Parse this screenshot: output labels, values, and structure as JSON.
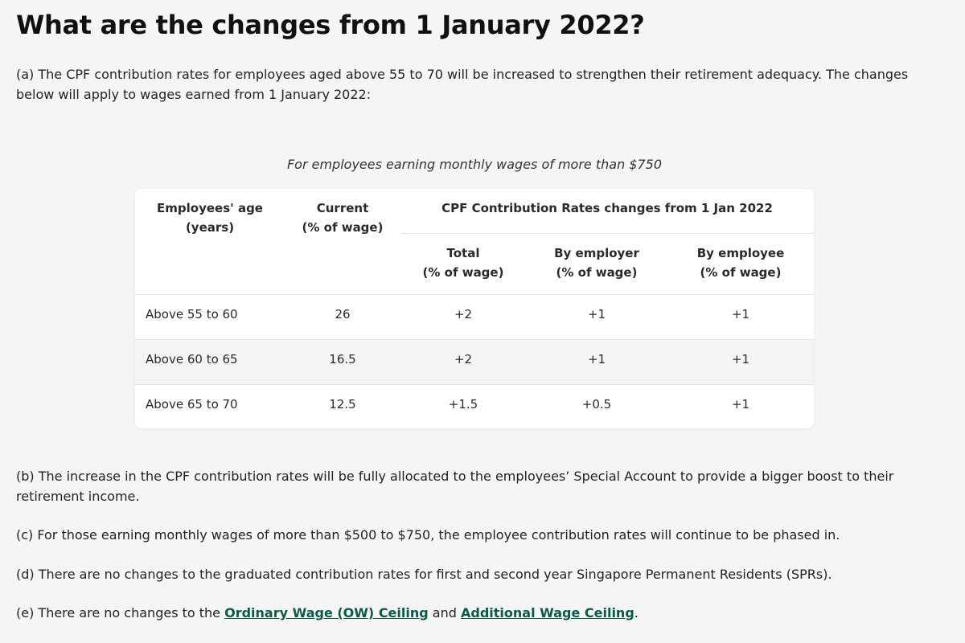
{
  "heading": "What are the changes from 1 January 2022?",
  "paragraphs": {
    "a": "(a) The CPF contribution rates for employees aged above 55 to 70 will be increased to strengthen their retirement adequacy. The changes below will apply to wages earned from 1 January 2022:",
    "b": "(b) The increase in the CPF contribution rates will be fully allocated to the employees’ Special Account to provide a bigger boost to their retirement income.",
    "c": "(c) For those earning monthly wages of more than $500 to $750, the employee contribution rates will continue to be phased in.",
    "d": "(d) There are no changes to the graduated contribution rates for first and second year Singapore Permanent Residents (SPRs).",
    "e": {
      "prefix": "(e) There are no changes to the ",
      "link1": "Ordinary Wage (OW) Ceiling",
      "middle": " and ",
      "link2": "Additional Wage Ceiling",
      "suffix": "."
    }
  },
  "table": {
    "caption": "For employees earning monthly wages of more than $750",
    "headers": {
      "age": [
        "Employees' age",
        "(years)"
      ],
      "current": [
        "Current",
        "(% of wage)"
      ],
      "group": "CPF Contribution Rates changes from 1 Jan 2022",
      "total": [
        "Total",
        "(% of wage)"
      ],
      "employer": [
        "By employer",
        "(% of wage)"
      ],
      "employee": [
        "By employee",
        "(% of wage)"
      ]
    },
    "rows": [
      [
        "Above 55 to 60",
        "26",
        "+2",
        "+1",
        "+1"
      ],
      [
        "Above 60 to 65",
        "16.5",
        "+2",
        "+1",
        "+1"
      ],
      [
        "Above 65 to 70",
        "12.5",
        "+1.5",
        "+0.5",
        "+1"
      ]
    ]
  },
  "colors": {
    "link": "#0a5a48",
    "background": "#f5f5f5",
    "shaded_row": "#f4f4f4"
  }
}
